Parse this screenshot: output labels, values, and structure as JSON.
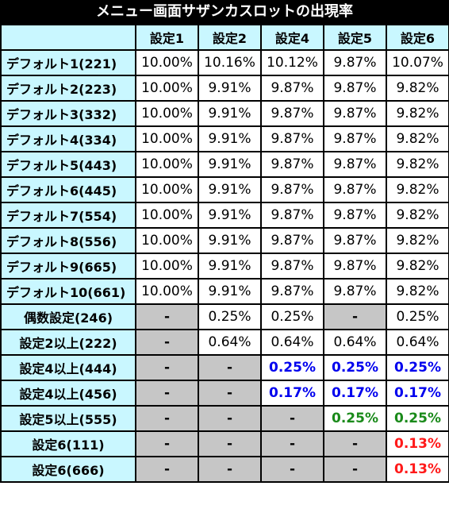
{
  "title": "メニュー画面サザンカスロットの出現率",
  "headers": [
    "設定1",
    "設定2",
    "設定4",
    "設定5",
    "設定6"
  ],
  "rows": [
    {
      "label": "デフォルト1(221)",
      "align": "left",
      "cells": [
        {
          "text": "10.00%",
          "style": "black"
        },
        {
          "text": "10.16%",
          "style": "black"
        },
        {
          "text": "10.12%",
          "style": "black"
        },
        {
          "text": "9.87%",
          "style": "black"
        },
        {
          "text": "10.07%",
          "style": "black"
        }
      ]
    },
    {
      "label": "デフォルト2(223)",
      "align": "left",
      "cells": [
        {
          "text": "10.00%",
          "style": "black"
        },
        {
          "text": "9.91%",
          "style": "black"
        },
        {
          "text": "9.87%",
          "style": "black"
        },
        {
          "text": "9.87%",
          "style": "black"
        },
        {
          "text": "9.82%",
          "style": "black"
        }
      ]
    },
    {
      "label": "デフォルト3(332)",
      "align": "left",
      "cells": [
        {
          "text": "10.00%",
          "style": "black"
        },
        {
          "text": "9.91%",
          "style": "black"
        },
        {
          "text": "9.87%",
          "style": "black"
        },
        {
          "text": "9.87%",
          "style": "black"
        },
        {
          "text": "9.82%",
          "style": "black"
        }
      ]
    },
    {
      "label": "デフォルト4(334)",
      "align": "left",
      "cells": [
        {
          "text": "10.00%",
          "style": "black"
        },
        {
          "text": "9.91%",
          "style": "black"
        },
        {
          "text": "9.87%",
          "style": "black"
        },
        {
          "text": "9.87%",
          "style": "black"
        },
        {
          "text": "9.82%",
          "style": "black"
        }
      ]
    },
    {
      "label": "デフォルト5(443)",
      "align": "left",
      "cells": [
        {
          "text": "10.00%",
          "style": "black"
        },
        {
          "text": "9.91%",
          "style": "black"
        },
        {
          "text": "9.87%",
          "style": "black"
        },
        {
          "text": "9.87%",
          "style": "black"
        },
        {
          "text": "9.82%",
          "style": "black"
        }
      ]
    },
    {
      "label": "デフォルト6(445)",
      "align": "left",
      "cells": [
        {
          "text": "10.00%",
          "style": "black"
        },
        {
          "text": "9.91%",
          "style": "black"
        },
        {
          "text": "9.87%",
          "style": "black"
        },
        {
          "text": "9.87%",
          "style": "black"
        },
        {
          "text": "9.82%",
          "style": "black"
        }
      ]
    },
    {
      "label": "デフォルト7(554)",
      "align": "left",
      "cells": [
        {
          "text": "10.00%",
          "style": "black"
        },
        {
          "text": "9.91%",
          "style": "black"
        },
        {
          "text": "9.87%",
          "style": "black"
        },
        {
          "text": "9.87%",
          "style": "black"
        },
        {
          "text": "9.82%",
          "style": "black"
        }
      ]
    },
    {
      "label": "デフォルト8(556)",
      "align": "left",
      "cells": [
        {
          "text": "10.00%",
          "style": "black"
        },
        {
          "text": "9.91%",
          "style": "black"
        },
        {
          "text": "9.87%",
          "style": "black"
        },
        {
          "text": "9.87%",
          "style": "black"
        },
        {
          "text": "9.82%",
          "style": "black"
        }
      ]
    },
    {
      "label": "デフォルト9(665)",
      "align": "left",
      "cells": [
        {
          "text": "10.00%",
          "style": "black"
        },
        {
          "text": "9.91%",
          "style": "black"
        },
        {
          "text": "9.87%",
          "style": "black"
        },
        {
          "text": "9.87%",
          "style": "black"
        },
        {
          "text": "9.82%",
          "style": "black"
        }
      ]
    },
    {
      "label": "デフォルト10(661)",
      "align": "left",
      "cells": [
        {
          "text": "10.00%",
          "style": "black"
        },
        {
          "text": "9.91%",
          "style": "black"
        },
        {
          "text": "9.87%",
          "style": "black"
        },
        {
          "text": "9.87%",
          "style": "black"
        },
        {
          "text": "9.82%",
          "style": "black"
        }
      ]
    },
    {
      "label": "偶数設定(246)",
      "align": "center",
      "cells": [
        {
          "text": "-",
          "style": "gray"
        },
        {
          "text": "0.25%",
          "style": "black"
        },
        {
          "text": "0.25%",
          "style": "black"
        },
        {
          "text": "-",
          "style": "gray"
        },
        {
          "text": "0.25%",
          "style": "black"
        }
      ]
    },
    {
      "label": "設定2以上(222)",
      "align": "center",
      "cells": [
        {
          "text": "-",
          "style": "gray"
        },
        {
          "text": "0.64%",
          "style": "black"
        },
        {
          "text": "0.64%",
          "style": "black"
        },
        {
          "text": "0.64%",
          "style": "black"
        },
        {
          "text": "0.64%",
          "style": "black"
        }
      ]
    },
    {
      "label": "設定4以上(444)",
      "align": "center",
      "cells": [
        {
          "text": "-",
          "style": "gray"
        },
        {
          "text": "-",
          "style": "gray"
        },
        {
          "text": "0.25%",
          "style": "blue"
        },
        {
          "text": "0.25%",
          "style": "blue"
        },
        {
          "text": "0.25%",
          "style": "blue"
        }
      ]
    },
    {
      "label": "設定4以上(456)",
      "align": "center",
      "cells": [
        {
          "text": "-",
          "style": "gray"
        },
        {
          "text": "-",
          "style": "gray"
        },
        {
          "text": "0.17%",
          "style": "blue"
        },
        {
          "text": "0.17%",
          "style": "blue"
        },
        {
          "text": "0.17%",
          "style": "blue"
        }
      ]
    },
    {
      "label": "設定5以上(555)",
      "align": "center",
      "cells": [
        {
          "text": "-",
          "style": "gray"
        },
        {
          "text": "-",
          "style": "gray"
        },
        {
          "text": "-",
          "style": "gray"
        },
        {
          "text": "0.25%",
          "style": "green"
        },
        {
          "text": "0.25%",
          "style": "green"
        }
      ]
    },
    {
      "label": "設定6(111)",
      "align": "center",
      "cells": [
        {
          "text": "-",
          "style": "gray"
        },
        {
          "text": "-",
          "style": "gray"
        },
        {
          "text": "-",
          "style": "gray"
        },
        {
          "text": "-",
          "style": "gray"
        },
        {
          "text": "0.13%",
          "style": "red"
        }
      ]
    },
    {
      "label": "設定6(666)",
      "align": "center",
      "cells": [
        {
          "text": "-",
          "style": "gray"
        },
        {
          "text": "-",
          "style": "gray"
        },
        {
          "text": "-",
          "style": "gray"
        },
        {
          "text": "-",
          "style": "gray"
        },
        {
          "text": "0.13%",
          "style": "red"
        }
      ]
    }
  ],
  "colors": {
    "header_bg": "#c9f7ff",
    "gray_cell": "#c6c6c6",
    "blue_text": "#0000ee",
    "green_text": "#1a8a1a",
    "red_text": "#ff1a1a",
    "title_bg": "#000000"
  }
}
